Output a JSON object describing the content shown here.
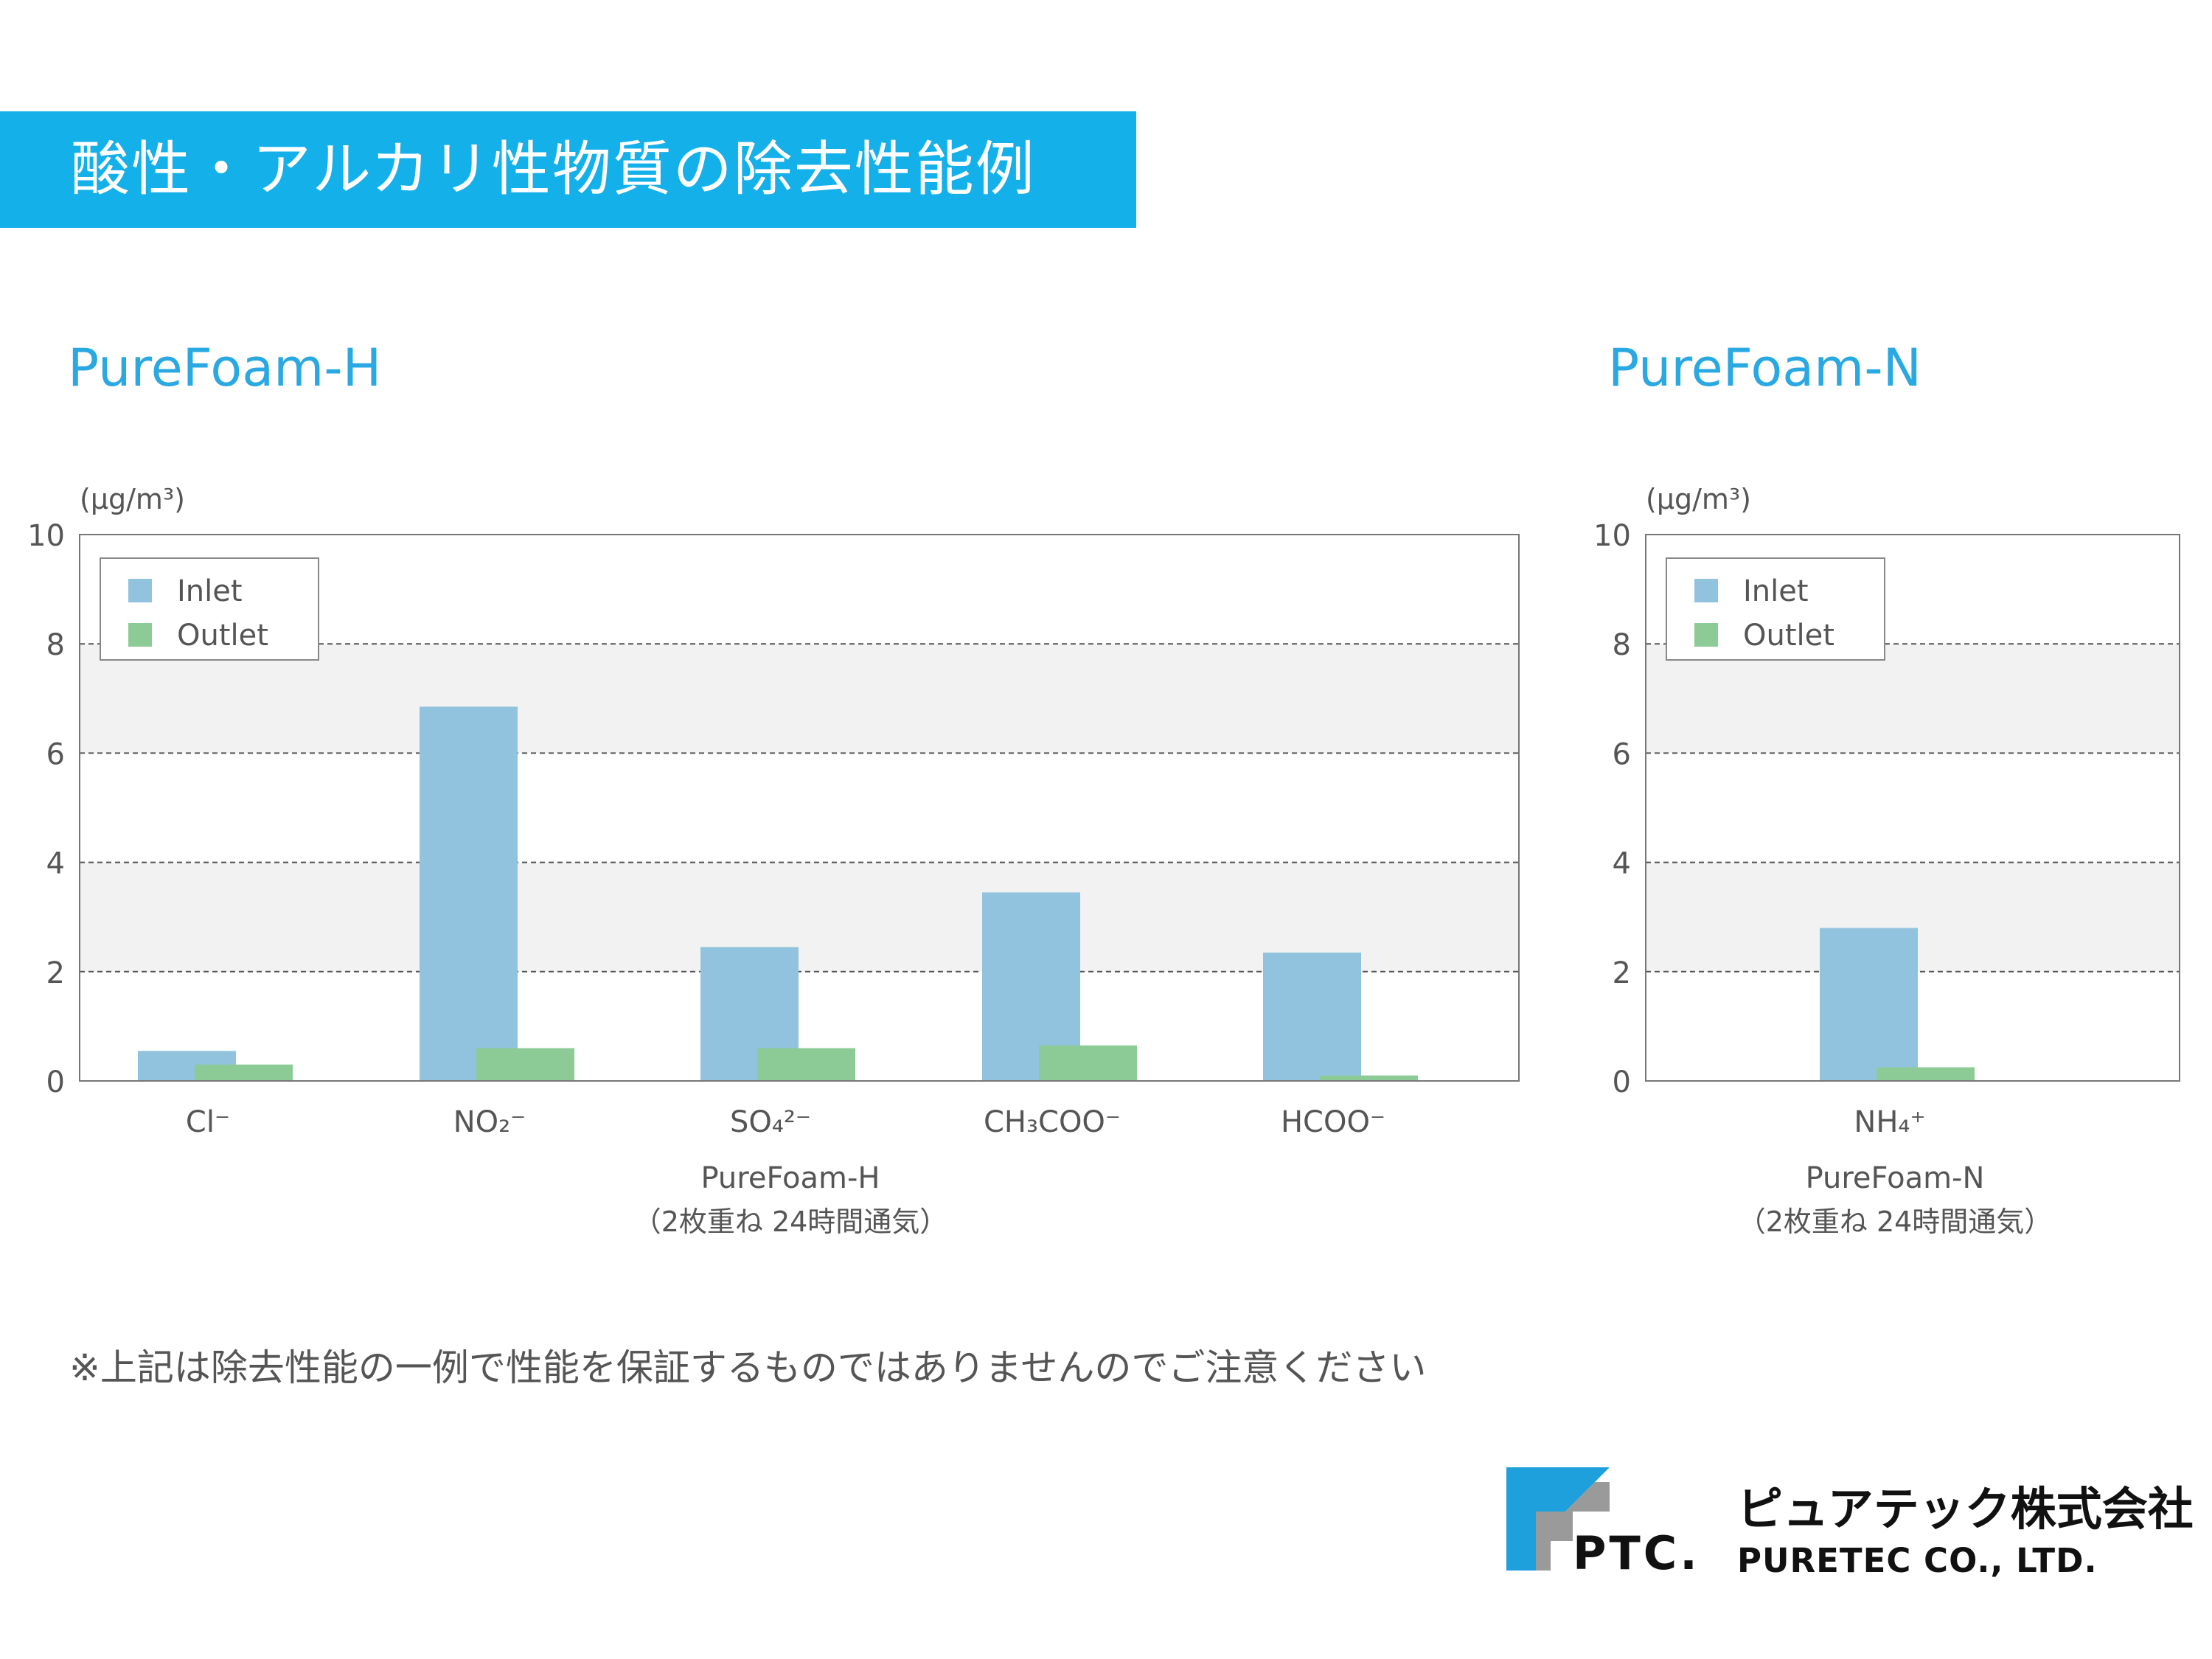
{
  "page": {
    "title": "酸性・アルカリ性物質の除去性能例",
    "note": "※上記は除去性能の一例で性能を保証するものではありませんのでご注意ください"
  },
  "company": {
    "logo_text": "PTC.",
    "name_jp": "ピュアテック株式会社",
    "name_en": "PURETEC CO., LTD."
  },
  "colors": {
    "title_bar": "#14b0ea",
    "heading": "#29a8e2",
    "inlet": "#92c3de",
    "outlet": "#8ccb96",
    "band": "#f2f2f2",
    "logo_blue": "#1ea0dc",
    "logo_gray": "#9a9a9a"
  },
  "chart_data": [
    {
      "type": "bar",
      "heading": "PureFoam-H",
      "unit": "(μg/m³)",
      "categories": [
        "Cl⁻",
        "NO₂⁻",
        "SO₄²⁻",
        "CH₃COO⁻",
        "HCOO⁻"
      ],
      "series": [
        {
          "name": "Inlet",
          "values": [
            0.55,
            6.85,
            2.45,
            3.45,
            2.35
          ]
        },
        {
          "name": "Outlet",
          "values": [
            0.3,
            0.6,
            0.6,
            0.65,
            0.1
          ]
        }
      ],
      "ylim": [
        0,
        10
      ],
      "yticks": [
        "0",
        "2",
        "4",
        "6",
        "8",
        "10"
      ],
      "legend": "top-left",
      "xlabel": "PureFoam-H",
      "xlabel_sub": "（2枚重ね 24時間通気）"
    },
    {
      "type": "bar",
      "heading": "PureFoam-N",
      "unit": "(μg/m³)",
      "categories": [
        "NH₄⁺"
      ],
      "series": [
        {
          "name": "Inlet",
          "values": [
            2.8
          ]
        },
        {
          "name": "Outlet",
          "values": [
            0.25
          ]
        }
      ],
      "ylim": [
        0,
        10
      ],
      "yticks": [
        "0",
        "2",
        "4",
        "6",
        "8",
        "10"
      ],
      "legend": "top-left",
      "xlabel": "PureFoam-N",
      "xlabel_sub": "（2枚重ね 24時間通気）"
    }
  ]
}
